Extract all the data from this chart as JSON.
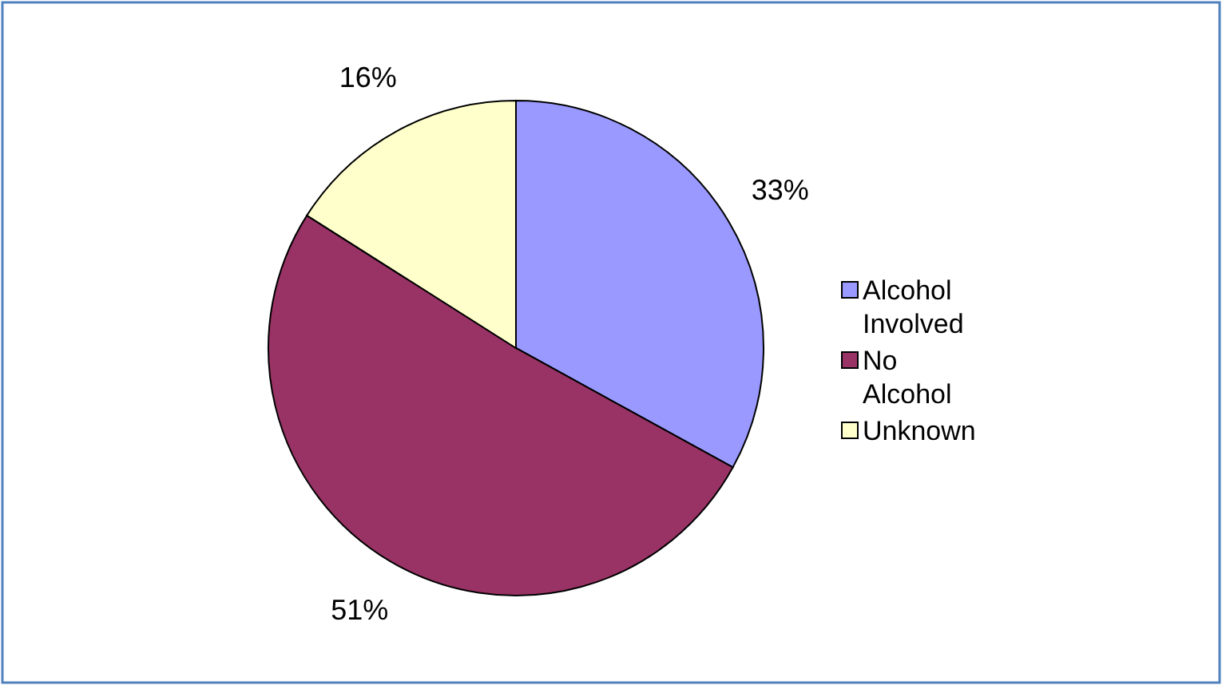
{
  "chart_data": {
    "type": "pie",
    "categories": [
      "Alcohol Involved",
      "No Alcohol",
      "Unknown"
    ],
    "values": [
      33,
      51,
      16
    ],
    "colors": [
      "#9999ff",
      "#993366",
      "#ffffcc"
    ],
    "value_labels": [
      "33%",
      "51%",
      "16%"
    ],
    "legend": "right"
  }
}
